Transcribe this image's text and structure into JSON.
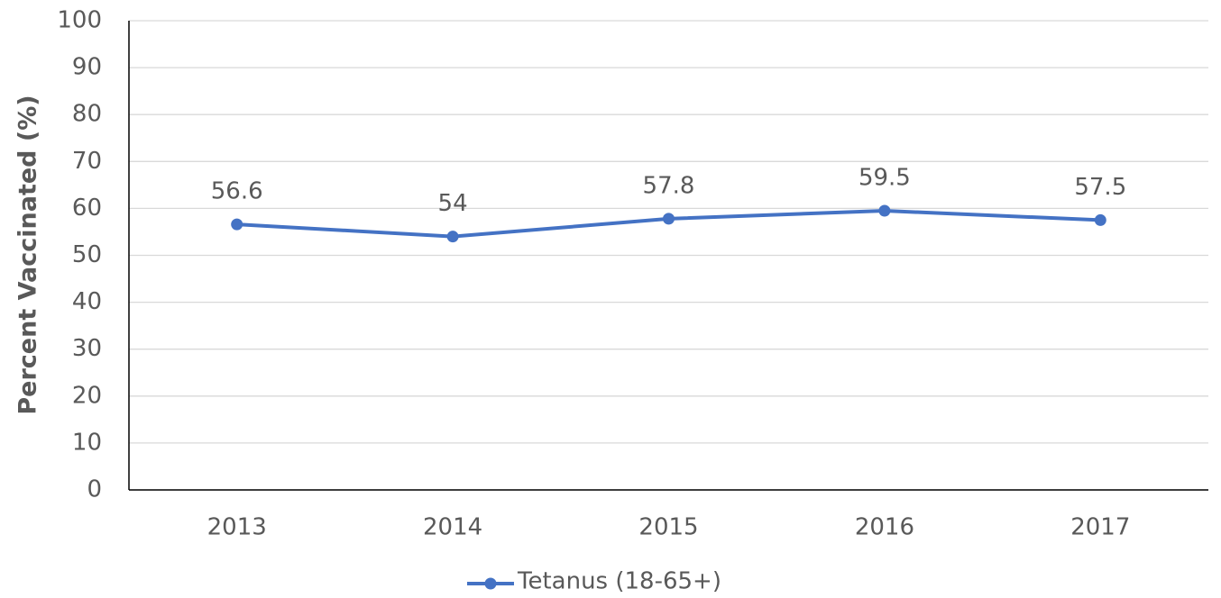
{
  "chart_data": {
    "type": "line",
    "y_label": "Percent Vaccinated (%)",
    "categories": [
      "2013",
      "2014",
      "2015",
      "2016",
      "2017"
    ],
    "series": [
      {
        "name": "Tetanus (18-65+)",
        "color": "#4472c4",
        "values": [
          56.6,
          54,
          57.8,
          59.5,
          57.5
        ]
      }
    ],
    "ylim": [
      0,
      100
    ],
    "yticks": [
      0,
      10,
      20,
      30,
      40,
      50,
      60,
      70,
      80,
      90,
      100
    ],
    "grid": true,
    "legend": "bottom"
  }
}
